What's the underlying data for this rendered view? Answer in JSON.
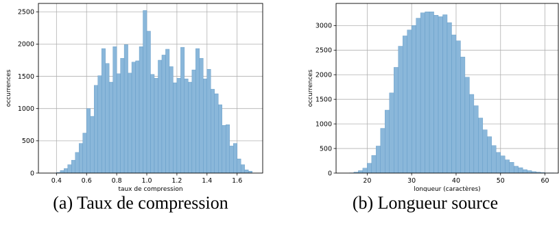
{
  "figure": {
    "captions": [
      "(a) Taux de compression",
      "(b) Longueur source"
    ]
  },
  "chart_data": [
    {
      "type": "bar",
      "subtype": "histogram",
      "xlabel": "taux de compression",
      "ylabel": "occurrences",
      "xlim": [
        0.28,
        1.77
      ],
      "ylim": [
        0,
        2630
      ],
      "xticks": [
        0.4,
        0.6,
        0.8,
        1.0,
        1.2,
        1.4,
        1.6
      ],
      "xtick_labels": [
        "0.4",
        "0.6",
        "0.8",
        "1.0",
        "1.2",
        "1.4",
        "1.6"
      ],
      "yticks": [
        0,
        500,
        1000,
        1500,
        2000,
        2500
      ],
      "ytick_labels": [
        "0",
        "500",
        "1000",
        "1500",
        "2000",
        "2500"
      ],
      "grid": true,
      "bar_color": "#8ab7da",
      "edge_color": "#5b95c2",
      "bins_start": 0.4,
      "bin_width": 0.025,
      "values": [
        10,
        40,
        70,
        130,
        200,
        320,
        460,
        620,
        1000,
        880,
        1360,
        1510,
        1930,
        1700,
        1410,
        1960,
        1540,
        1780,
        1990,
        1550,
        1720,
        1740,
        1960,
        2520,
        2200,
        1530,
        1470,
        1750,
        1830,
        1920,
        1650,
        1400,
        1470,
        1950,
        1460,
        1410,
        1600,
        1930,
        1780,
        1460,
        1610,
        1300,
        1230,
        1060,
        740,
        750,
        420,
        460,
        220,
        130,
        50,
        30
      ]
    },
    {
      "type": "bar",
      "subtype": "histogram",
      "xlabel": "longueur (caractères)",
      "ylabel": "occurrences",
      "xlim": [
        13,
        63
      ],
      "ylim": [
        0,
        3450
      ],
      "xticks": [
        20,
        30,
        40,
        50,
        60
      ],
      "xtick_labels": [
        "20",
        "30",
        "40",
        "50",
        "60"
      ],
      "yticks": [
        0,
        500,
        1000,
        1500,
        2000,
        2500,
        3000
      ],
      "ytick_labels": [
        "0",
        "500",
        "1000",
        "1500",
        "2000",
        "2500",
        "3000"
      ],
      "grid": true,
      "bar_color": "#8ab7da",
      "edge_color": "#5b95c2",
      "bins_start": 16,
      "bin_width": 1,
      "values": [
        5,
        20,
        50,
        100,
        200,
        360,
        550,
        910,
        1280,
        1630,
        2150,
        2580,
        2790,
        2910,
        3000,
        3150,
        3260,
        3280,
        3280,
        3210,
        3180,
        3220,
        3060,
        2810,
        2690,
        2360,
        1950,
        1600,
        1370,
        1120,
        880,
        740,
        560,
        420,
        350,
        270,
        220,
        140,
        110,
        70,
        50,
        30,
        20,
        10,
        5,
        5,
        2
      ]
    }
  ]
}
